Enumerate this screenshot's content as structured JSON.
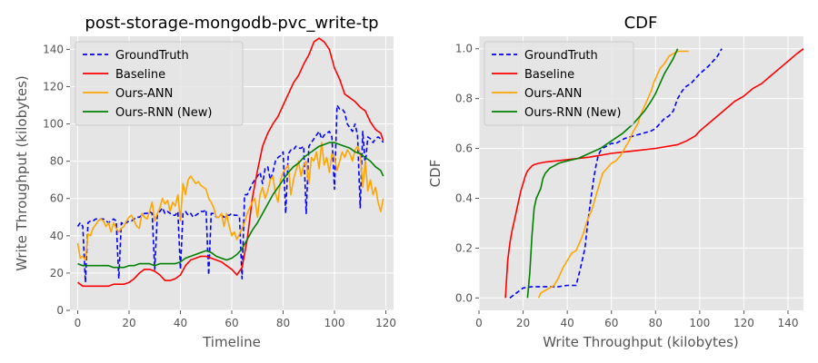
{
  "colors": {
    "background": "#E5E5E5",
    "grid": "#FFFFFF",
    "GroundTruth": "#0000FF",
    "Baseline": "#FF0000",
    "Ours-ANN": "#FFA500",
    "Ours-RNN (New)": "#008000"
  },
  "chart_data": [
    {
      "type": "line",
      "title": "post-storage-mongodb-pvc_write-tp",
      "xlabel": "Timeline",
      "ylabel": "Write Throughput (kilobytes)",
      "xlim": [
        -3,
        123
      ],
      "ylim": [
        0,
        147
      ],
      "xticks": [
        0,
        20,
        40,
        60,
        80,
        100,
        120
      ],
      "yticks": [
        0,
        20,
        40,
        60,
        80,
        100,
        120,
        140
      ],
      "grid": true,
      "legend": "top-left",
      "series": [
        {
          "name": "GroundTruth",
          "style": "dashed",
          "x": [
            0,
            1,
            2,
            3,
            4,
            5,
            6,
            7,
            8,
            9,
            10,
            11,
            12,
            13,
            14,
            15,
            16,
            17,
            18,
            19,
            20,
            21,
            22,
            23,
            24,
            25,
            26,
            27,
            28,
            29,
            30,
            31,
            32,
            33,
            34,
            35,
            36,
            37,
            38,
            39,
            40,
            41,
            42,
            43,
            44,
            45,
            46,
            47,
            48,
            49,
            50,
            51,
            52,
            53,
            54,
            55,
            56,
            57,
            58,
            59,
            60,
            61,
            62,
            63,
            64,
            65,
            66,
            67,
            68,
            69,
            70,
            71,
            72,
            73,
            74,
            75,
            76,
            77,
            78,
            79,
            80,
            81,
            82,
            83,
            84,
            85,
            86,
            87,
            88,
            89,
            90,
            91,
            92,
            93,
            94,
            95,
            96,
            97,
            98,
            99,
            100,
            101,
            102,
            103,
            104,
            105,
            106,
            107,
            108,
            109,
            110,
            111,
            112,
            113,
            114,
            115,
            116,
            117,
            118,
            119
          ],
          "y": [
            45,
            47,
            45,
            15,
            47,
            48,
            48,
            49,
            49,
            49,
            49,
            48,
            47,
            48,
            49,
            48,
            17,
            47,
            46,
            47,
            48,
            48,
            49,
            50,
            50,
            51,
            52,
            52,
            53,
            52,
            22,
            51,
            53,
            55,
            52,
            53,
            52,
            51,
            51,
            53,
            22,
            52,
            53,
            51,
            52,
            50,
            51,
            52,
            53,
            53,
            54,
            19,
            52,
            52,
            50,
            50,
            51,
            50,
            51,
            51,
            52,
            51,
            51,
            50,
            17,
            62,
            62,
            65,
            68,
            70,
            72,
            74,
            68,
            76,
            77,
            70,
            74,
            80,
            82,
            83,
            85,
            52,
            84,
            86,
            86,
            88,
            87,
            87,
            88,
            52,
            88,
            90,
            92,
            94,
            96,
            92,
            94,
            95,
            96,
            93,
            65,
            110,
            108,
            108,
            106,
            100,
            98,
            96,
            100,
            94,
            55,
            96,
            78,
            93,
            92,
            90,
            92,
            93,
            92,
            90
          ]
        },
        {
          "name": "Baseline",
          "style": "solid",
          "x": [
            0,
            2,
            4,
            6,
            8,
            10,
            12,
            14,
            16,
            18,
            20,
            22,
            24,
            26,
            28,
            30,
            32,
            34,
            36,
            38,
            40,
            42,
            44,
            46,
            48,
            50,
            52,
            54,
            56,
            58,
            60,
            62,
            64,
            66,
            68,
            70,
            72,
            74,
            76,
            78,
            80,
            82,
            84,
            86,
            88,
            90,
            92,
            94,
            96,
            98,
            100,
            102,
            104,
            106,
            108,
            110,
            112,
            114,
            116,
            118,
            119
          ],
          "y": [
            15,
            13,
            13,
            13,
            13,
            13,
            13,
            14,
            14,
            14,
            15,
            17,
            20,
            22,
            22,
            21,
            19,
            16,
            16,
            17,
            19,
            24,
            27,
            28,
            29,
            29,
            28,
            27,
            26,
            24,
            22,
            19,
            23,
            38,
            60,
            75,
            88,
            95,
            100,
            104,
            110,
            116,
            122,
            126,
            132,
            137,
            144,
            146,
            144,
            140,
            130,
            124,
            116,
            114,
            112,
            109,
            107,
            101,
            97,
            95,
            91
          ]
        },
        {
          "name": "Ours-ANN",
          "style": "solid",
          "x": [
            0,
            1,
            2,
            3,
            4,
            5,
            6,
            7,
            8,
            9,
            10,
            11,
            12,
            13,
            14,
            15,
            16,
            17,
            18,
            19,
            20,
            21,
            22,
            23,
            24,
            25,
            26,
            27,
            28,
            29,
            30,
            31,
            32,
            33,
            34,
            35,
            36,
            37,
            38,
            39,
            40,
            41,
            42,
            43,
            44,
            45,
            46,
            47,
            48,
            49,
            50,
            51,
            52,
            53,
            54,
            55,
            56,
            57,
            58,
            59,
            60,
            61,
            62,
            63,
            64,
            65,
            66,
            67,
            68,
            69,
            70,
            71,
            72,
            73,
            74,
            75,
            76,
            77,
            78,
            79,
            80,
            81,
            82,
            83,
            84,
            85,
            86,
            87,
            88,
            89,
            90,
            91,
            92,
            93,
            94,
            95,
            96,
            97,
            98,
            99,
            100,
            101,
            102,
            103,
            104,
            105,
            106,
            107,
            108,
            109,
            110,
            111,
            112,
            113,
            114,
            115,
            116,
            117,
            118,
            119
          ],
          "y": [
            36,
            28,
            29,
            27,
            41,
            40,
            44,
            46,
            48,
            49,
            48,
            45,
            47,
            42,
            47,
            44,
            42,
            44,
            45,
            48,
            50,
            51,
            48,
            45,
            44,
            52,
            50,
            49,
            53,
            58,
            48,
            52,
            55,
            60,
            57,
            59,
            53,
            58,
            56,
            62,
            48,
            68,
            62,
            70,
            72,
            70,
            68,
            69,
            67,
            66,
            65,
            60,
            58,
            55,
            50,
            50,
            52,
            45,
            52,
            45,
            40,
            42,
            38,
            41,
            44,
            47,
            52,
            55,
            58,
            60,
            50,
            62,
            66,
            60,
            64,
            70,
            72,
            63,
            58,
            70,
            74,
            76,
            78,
            62,
            70,
            75,
            80,
            72,
            78,
            80,
            68,
            82,
            80,
            85,
            76,
            90,
            78,
            82,
            74,
            84,
            82,
            75,
            80,
            85,
            82,
            86,
            84,
            80,
            86,
            88,
            84,
            66,
            80,
            64,
            70,
            62,
            66,
            58,
            53,
            60
          ]
        },
        {
          "name": "Ours-RNN (New)",
          "style": "solid",
          "x": [
            0,
            2,
            4,
            6,
            8,
            10,
            12,
            14,
            16,
            18,
            20,
            22,
            24,
            26,
            28,
            30,
            32,
            34,
            36,
            38,
            40,
            42,
            44,
            46,
            48,
            50,
            52,
            54,
            56,
            58,
            60,
            62,
            64,
            66,
            68,
            70,
            72,
            74,
            76,
            78,
            80,
            82,
            84,
            86,
            88,
            90,
            92,
            94,
            96,
            98,
            100,
            102,
            104,
            106,
            108,
            110,
            112,
            114,
            116,
            118,
            119
          ],
          "y": [
            25,
            24,
            24,
            24,
            24,
            24,
            24,
            23,
            23,
            23,
            24,
            24,
            25,
            25,
            25,
            24,
            25,
            25,
            25,
            25,
            26,
            28,
            29,
            30,
            31,
            32,
            31,
            29,
            28,
            27,
            28,
            30,
            33,
            38,
            43,
            47,
            52,
            57,
            62,
            66,
            70,
            74,
            77,
            79,
            82,
            84,
            86,
            88,
            89,
            90,
            90,
            89,
            88,
            87,
            85,
            84,
            82,
            80,
            77,
            75,
            72
          ]
        }
      ]
    },
    {
      "type": "line",
      "title": "CDF",
      "xlabel": "Write Throughput (kilobytes)",
      "ylabel": "CDF",
      "xlim": [
        0,
        147
      ],
      "ylim": [
        -0.05,
        1.05
      ],
      "xticks": [
        0,
        20,
        40,
        60,
        80,
        100,
        120,
        140
      ],
      "yticks": [
        0.0,
        0.2,
        0.4,
        0.6,
        0.8,
        1.0
      ],
      "grid": true,
      "legend": "top-left",
      "series": [
        {
          "name": "GroundTruth",
          "style": "dashed",
          "x": [
            14,
            17,
            20,
            24,
            30,
            36,
            40,
            44,
            46,
            48,
            49,
            50,
            51,
            52,
            53,
            54,
            55,
            56,
            58,
            60,
            62,
            64,
            66,
            70,
            74,
            78,
            80,
            82,
            84,
            86,
            88,
            90,
            92,
            94,
            96,
            98,
            100,
            104,
            108,
            110
          ],
          "y": [
            0.0,
            0.02,
            0.04,
            0.045,
            0.045,
            0.045,
            0.05,
            0.05,
            0.12,
            0.2,
            0.28,
            0.35,
            0.42,
            0.48,
            0.53,
            0.57,
            0.59,
            0.6,
            0.61,
            0.62,
            0.62,
            0.63,
            0.64,
            0.65,
            0.66,
            0.67,
            0.68,
            0.7,
            0.72,
            0.73,
            0.75,
            0.8,
            0.83,
            0.85,
            0.86,
            0.88,
            0.9,
            0.93,
            0.97,
            1.0
          ]
        },
        {
          "name": "Baseline",
          "style": "solid",
          "x": [
            12,
            13,
            14,
            15,
            16,
            17,
            18,
            19,
            20,
            21,
            22,
            23,
            24,
            25,
            27,
            30,
            35,
            40,
            50,
            60,
            70,
            80,
            90,
            94,
            98,
            100,
            104,
            108,
            112,
            116,
            120,
            124,
            128,
            132,
            136,
            140,
            144,
            147
          ],
          "y": [
            0.0,
            0.15,
            0.22,
            0.27,
            0.31,
            0.35,
            0.39,
            0.43,
            0.46,
            0.49,
            0.51,
            0.52,
            0.53,
            0.535,
            0.54,
            0.545,
            0.55,
            0.555,
            0.565,
            0.58,
            0.59,
            0.6,
            0.615,
            0.63,
            0.65,
            0.67,
            0.7,
            0.73,
            0.76,
            0.79,
            0.81,
            0.84,
            0.86,
            0.89,
            0.92,
            0.95,
            0.98,
            1.0
          ]
        },
        {
          "name": "Ours-ANN",
          "style": "solid",
          "x": [
            27,
            28,
            30,
            32,
            34,
            36,
            38,
            40,
            42,
            44,
            45,
            46,
            47,
            48,
            49,
            50,
            51,
            52,
            53,
            54,
            55,
            56,
            58,
            60,
            62,
            64,
            66,
            68,
            70,
            72,
            73,
            74,
            75,
            76,
            77,
            78,
            79,
            80,
            81,
            82,
            84,
            86,
            88,
            90,
            92,
            95
          ],
          "y": [
            0.0,
            0.02,
            0.03,
            0.04,
            0.05,
            0.08,
            0.12,
            0.15,
            0.18,
            0.19,
            0.21,
            0.23,
            0.25,
            0.28,
            0.31,
            0.33,
            0.35,
            0.38,
            0.41,
            0.44,
            0.47,
            0.5,
            0.52,
            0.54,
            0.55,
            0.57,
            0.6,
            0.63,
            0.67,
            0.7,
            0.73,
            0.75,
            0.77,
            0.79,
            0.81,
            0.83,
            0.86,
            0.88,
            0.9,
            0.92,
            0.94,
            0.97,
            0.98,
            0.99,
            0.99,
            0.99
          ]
        },
        {
          "name": "Ours-RNN (New)",
          "style": "solid",
          "x": [
            22,
            23,
            24,
            25,
            26,
            27,
            28,
            29,
            30,
            31,
            32,
            33,
            34,
            35,
            36,
            38,
            40,
            45,
            50,
            55,
            60,
            65,
            70,
            75,
            78,
            80,
            82,
            84,
            86,
            88,
            90
          ],
          "y": [
            0.0,
            0.1,
            0.25,
            0.36,
            0.4,
            0.42,
            0.44,
            0.48,
            0.5,
            0.51,
            0.52,
            0.525,
            0.53,
            0.535,
            0.54,
            0.545,
            0.55,
            0.56,
            0.58,
            0.6,
            0.63,
            0.66,
            0.7,
            0.75,
            0.79,
            0.82,
            0.86,
            0.9,
            0.93,
            0.96,
            1.0
          ]
        }
      ]
    }
  ]
}
